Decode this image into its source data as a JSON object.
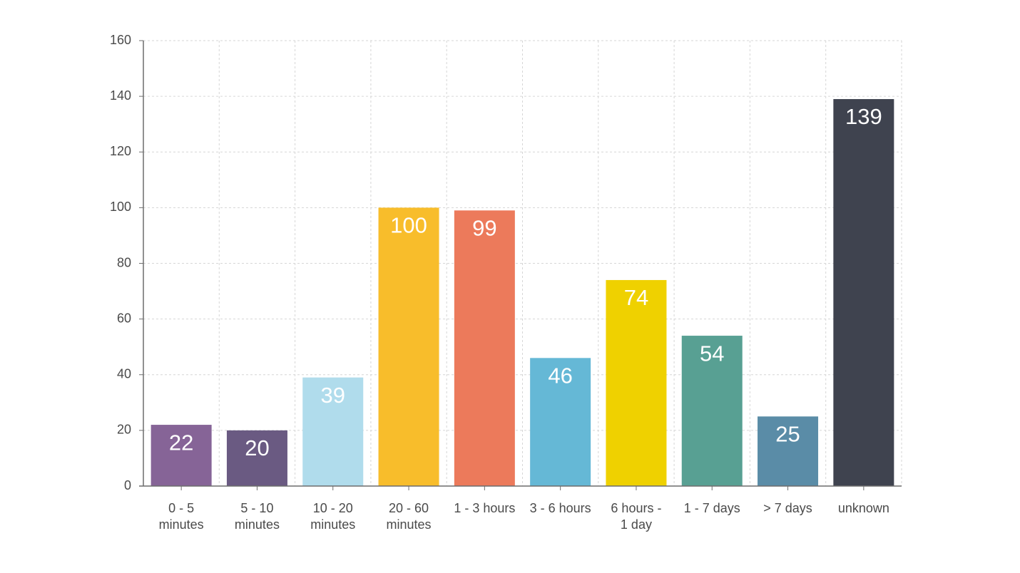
{
  "chart_data": {
    "type": "bar",
    "categories": [
      [
        "0 - 5",
        "minutes"
      ],
      [
        "5 - 10",
        "minutes"
      ],
      [
        "10 - 20",
        "minutes"
      ],
      [
        "20 - 60",
        "minutes"
      ],
      [
        "1 - 3 hours"
      ],
      [
        "3 - 6 hours"
      ],
      [
        "6 hours -",
        "1 day"
      ],
      [
        "1 - 7 days"
      ],
      [
        "> 7 days"
      ],
      [
        "unknown"
      ]
    ],
    "values": [
      22,
      20,
      39,
      100,
      99,
      46,
      74,
      54,
      25,
      139
    ],
    "data_labels": [
      "22",
      "20",
      "39",
      "100",
      "99",
      "46",
      "74",
      "54",
      "25",
      "139"
    ],
    "colors": [
      "#866497",
      "#6a5a82",
      "#b0dcec",
      "#f8bd2b",
      "#ec7a5b",
      "#65b8d6",
      "#efd100",
      "#58a093",
      "#5a8ca7",
      "#3f434f"
    ],
    "y_ticks": [
      0,
      20,
      40,
      60,
      80,
      100,
      120,
      140,
      160
    ],
    "ylim": [
      0,
      160
    ],
    "grid": true,
    "legend": "none"
  }
}
